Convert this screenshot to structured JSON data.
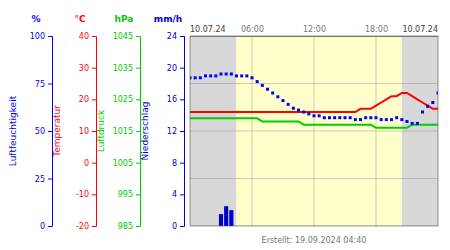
{
  "chart_data": {
    "type": "line",
    "title": "10.07.24",
    "annotations": [
      {
        "text": "10.07.24",
        "position": "top-right"
      },
      {
        "text": "Erstellt: 19.09.2024 04:40",
        "position": "bottom"
      }
    ],
    "xlim": [
      0,
      24
    ],
    "xticks": [
      {
        "value": 6,
        "label": "06:00"
      },
      {
        "value": 12,
        "label": "12:00"
      },
      {
        "value": 18,
        "label": "18:00"
      }
    ],
    "grid": true,
    "bands": [
      {
        "from": 0,
        "to": 4.5,
        "color": "#d8d8d8"
      },
      {
        "from": 4.5,
        "to": 20.5,
        "color": "#ffffcc"
      },
      {
        "from": 20.5,
        "to": 24,
        "color": "#d8d8d8"
      }
    ],
    "series": [
      {
        "name": "Luftfeuchtigkeit",
        "unit": "%",
        "type": "scatter",
        "marker": "square",
        "color": "#0000ff",
        "ylim": [
          0,
          100
        ],
        "yticks": [
          0,
          25,
          50,
          75,
          100
        ],
        "x": [
          0,
          0.5,
          1,
          1.5,
          2,
          2.5,
          3,
          3.5,
          4,
          4.5,
          5,
          5.5,
          6,
          6.5,
          7,
          7.5,
          8,
          8.5,
          9,
          9.5,
          10,
          10.5,
          11,
          11.5,
          12,
          12.5,
          13,
          13.5,
          14,
          14.5,
          15,
          15.5,
          16,
          16.5,
          17,
          17.5,
          18,
          18.5,
          19,
          19.5,
          20,
          20.5,
          21,
          21.5,
          22,
          22.5,
          23,
          23.5,
          24
        ],
        "values": [
          78,
          78,
          78,
          79,
          79,
          79,
          80,
          80,
          80,
          79,
          79,
          79,
          78,
          76,
          74,
          72,
          70,
          68,
          66,
          64,
          62,
          61,
          60,
          59,
          58,
          58,
          57,
          57,
          57,
          57,
          57,
          57,
          56,
          56,
          57,
          57,
          57,
          56,
          56,
          56,
          57,
          56,
          55,
          54,
          54,
          60,
          63,
          65,
          70
        ]
      },
      {
        "name": "Temperatur",
        "unit": "°C",
        "type": "line",
        "color": "#ff0000",
        "ylim": [
          -20,
          40
        ],
        "yticks": [
          -20,
          -10,
          0,
          10,
          20,
          30,
          40
        ],
        "x": [
          0,
          0.5,
          1,
          1.5,
          2,
          2.5,
          3,
          3.5,
          4,
          4.5,
          5,
          5.5,
          6,
          6.5,
          7,
          7.5,
          8,
          8.5,
          9,
          9.5,
          10,
          10.5,
          11,
          11.5,
          12,
          12.5,
          13,
          13.5,
          14,
          14.5,
          15,
          15.5,
          16,
          16.5,
          17,
          17.5,
          18,
          18.5,
          19,
          19.5,
          20,
          20.5,
          21,
          21.5,
          22,
          22.5,
          23,
          23.5,
          24
        ],
        "values": [
          16,
          16,
          16,
          16,
          16,
          16,
          16,
          16,
          16,
          16,
          16,
          16,
          16,
          16,
          16,
          16,
          16,
          16,
          16,
          16,
          16,
          16,
          16,
          16,
          16,
          16,
          16,
          16,
          16,
          16,
          16,
          16,
          16,
          17,
          17,
          17,
          18,
          19,
          20,
          21,
          21,
          22,
          22,
          21,
          20,
          19,
          18,
          17,
          17
        ]
      },
      {
        "name": "Luftdruck",
        "unit": "hPa",
        "type": "line",
        "color": "#00cc00",
        "ylim": [
          985,
          1045
        ],
        "yticks": [
          985,
          995,
          1005,
          1015,
          1025,
          1035,
          1045
        ],
        "x": [
          0,
          0.5,
          1,
          1.5,
          2,
          2.5,
          3,
          3.5,
          4,
          4.5,
          5,
          5.5,
          6,
          6.5,
          7,
          7.5,
          8,
          8.5,
          9,
          9.5,
          10,
          10.5,
          11,
          11.5,
          12,
          12.5,
          13,
          13.5,
          14,
          14.5,
          15,
          15.5,
          16,
          16.5,
          17,
          17.5,
          18,
          18.5,
          19,
          19.5,
          20,
          20.5,
          21,
          21.5,
          22,
          22.5,
          23,
          23.5,
          24
        ],
        "values": [
          1019,
          1019,
          1019,
          1019,
          1019,
          1019,
          1019,
          1019,
          1019,
          1019,
          1019,
          1019,
          1019,
          1019,
          1018,
          1018,
          1018,
          1018,
          1018,
          1018,
          1018,
          1018,
          1017,
          1017,
          1017,
          1017,
          1017,
          1017,
          1017,
          1017,
          1017,
          1017,
          1017,
          1017,
          1017,
          1017,
          1016,
          1016,
          1016,
          1016,
          1016,
          1016,
          1016,
          1017,
          1017,
          1017,
          1017,
          1017,
          1017
        ]
      },
      {
        "name": "Niederschlag",
        "unit": "mm/h",
        "type": "bar",
        "color": "#0000cc",
        "ylim": [
          0,
          24
        ],
        "yticks": [
          0,
          4,
          8,
          12,
          16,
          20,
          24
        ],
        "x": [
          3.0,
          3.5,
          4.0
        ],
        "values": [
          1.5,
          2.5,
          2.0
        ]
      }
    ]
  }
}
